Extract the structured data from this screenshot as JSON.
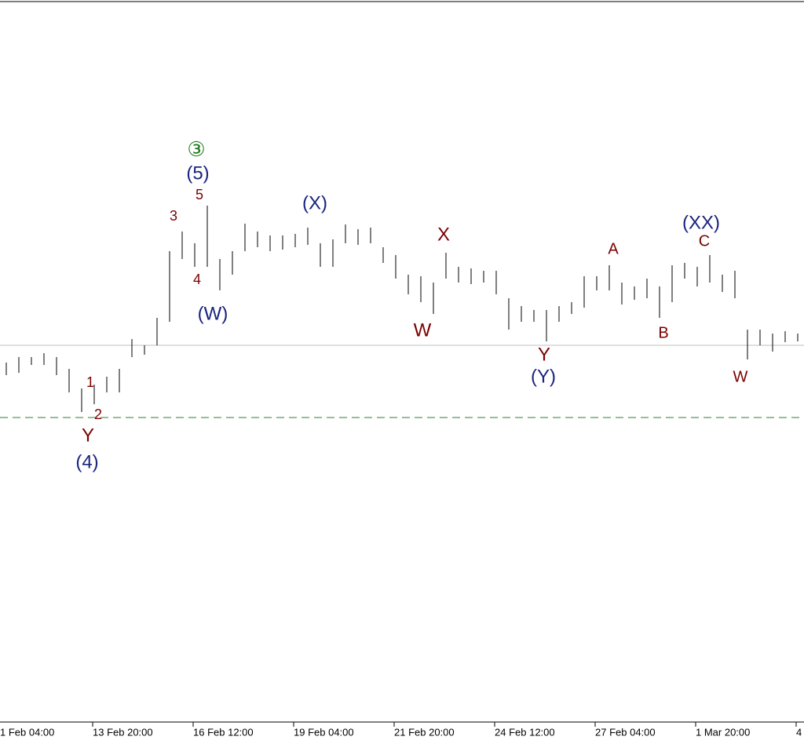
{
  "chart_data": {
    "type": "hilo",
    "x_labels": [
      "1 Feb 04:00",
      "13 Feb 20:00",
      "16 Feb 12:00",
      "19 Feb 04:00",
      "21 Feb 20:00",
      "24 Feb 12:00",
      "27 Feb 04:00",
      "1 Mar 20:00",
      "4"
    ],
    "color": "#000000",
    "high": [
      458,
      465,
      465,
      470,
      465,
      450,
      425,
      430,
      440,
      450,
      488,
      480,
      515,
      600,
      625,
      610,
      658,
      590,
      600,
      635,
      625,
      620,
      620,
      622,
      630,
      610,
      615,
      634,
      628,
      630,
      605,
      595,
      570,
      568,
      560,
      598,
      580,
      578,
      575,
      575,
      540,
      530,
      525,
      525,
      530,
      535,
      568,
      568,
      582,
      560,
      555,
      565,
      555,
      582,
      585,
      580,
      595,
      570,
      575,
      500,
      500,
      495,
      498,
      495
    ],
    "low": [
      442,
      445,
      455,
      455,
      442,
      420,
      395,
      405,
      420,
      420,
      465,
      468,
      480,
      510,
      590,
      580,
      580,
      550,
      570,
      600,
      605,
      600,
      602,
      605,
      608,
      580,
      580,
      610,
      608,
      610,
      585,
      565,
      545,
      535,
      520,
      565,
      560,
      558,
      560,
      545,
      500,
      510,
      510,
      485,
      510,
      520,
      528,
      550,
      550,
      532,
      538,
      540,
      515,
      535,
      565,
      555,
      560,
      548,
      540,
      462,
      480,
      472,
      484,
      485
    ],
    "ylim": [
      0,
      920
    ],
    "hlines": [
      {
        "value": 480,
        "color": "#c0c0c0",
        "style": "solid"
      },
      {
        "value": 388,
        "color": "#2e7d32",
        "style": "dashed"
      }
    ],
    "annotations": [
      {
        "text": "③",
        "color": "#1b7a1b"
      },
      {
        "text": "(5)",
        "color": "#1a237e"
      },
      {
        "text": "5",
        "color": "#7b0000"
      },
      {
        "text": "3",
        "color": "#7b0000"
      },
      {
        "text": "4",
        "color": "#7b0000"
      },
      {
        "text": "(W)",
        "color": "#1a237e"
      },
      {
        "text": "1",
        "color": "#7b0000"
      },
      {
        "text": "2",
        "color": "#7b0000"
      },
      {
        "text": "Y",
        "color": "#7b0000"
      },
      {
        "text": "(4)",
        "color": "#1a237e"
      },
      {
        "text": "(X)",
        "color": "#1a237e"
      },
      {
        "text": "X",
        "color": "#7b0000"
      },
      {
        "text": "W",
        "color": "#7b0000"
      },
      {
        "text": "Y",
        "color": "#7b0000"
      },
      {
        "text": "(Y)",
        "color": "#1a237e"
      },
      {
        "text": "A",
        "color": "#7b0000"
      },
      {
        "text": "B",
        "color": "#7b0000"
      },
      {
        "text": "(XX)",
        "color": "#1a237e"
      },
      {
        "text": "C",
        "color": "#7b0000"
      },
      {
        "text": "W",
        "color": "#7b0000"
      }
    ]
  }
}
